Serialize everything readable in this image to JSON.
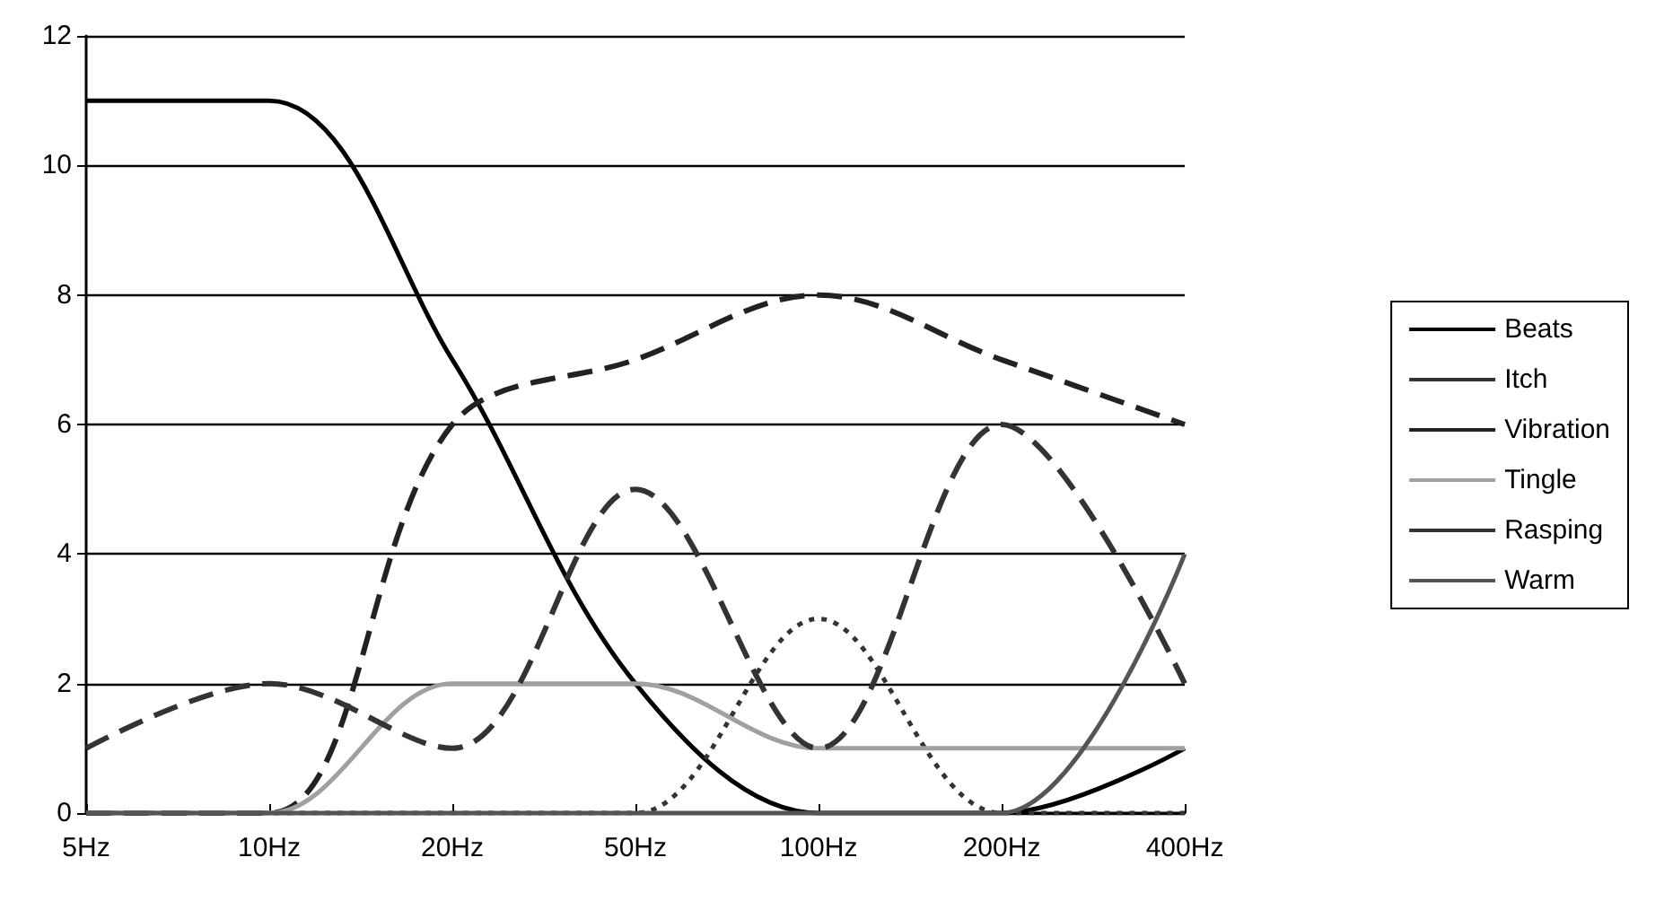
{
  "chart_data": {
    "type": "line",
    "categories": [
      "5Hz",
      "10Hz",
      "20Hz",
      "50Hz",
      "100Hz",
      "200Hz",
      "400Hz"
    ],
    "series": [
      {
        "name": "Beats",
        "color": "#000000",
        "line_style": "solid",
        "values": [
          11,
          11,
          7,
          2,
          0,
          0,
          1
        ]
      },
      {
        "name": "Itch",
        "color": "#333333",
        "line_style": "dotted",
        "values": [
          0,
          0,
          0,
          0,
          3,
          0,
          0
        ]
      },
      {
        "name": "Vibration",
        "color": "#222222",
        "line_style": "dashed",
        "values": [
          0,
          0,
          6,
          7,
          8,
          7,
          6
        ]
      },
      {
        "name": "Tingle",
        "color": "#a0a0a0",
        "line_style": "solid",
        "values": [
          0,
          0,
          2,
          2,
          1,
          1,
          1
        ]
      },
      {
        "name": "Rasping",
        "color": "#333333",
        "line_style": "dashed",
        "values": [
          1,
          2,
          1,
          5,
          1,
          6,
          2
        ]
      },
      {
        "name": "Warm",
        "color": "#555555",
        "line_style": "solid",
        "values": [
          0,
          0,
          0,
          0,
          0,
          0,
          4
        ]
      }
    ],
    "ylim": [
      0,
      12
    ],
    "yticks": [
      0,
      2,
      4,
      6,
      8,
      10,
      12
    ],
    "grid": "y",
    "legend": "right",
    "marker": "none"
  }
}
